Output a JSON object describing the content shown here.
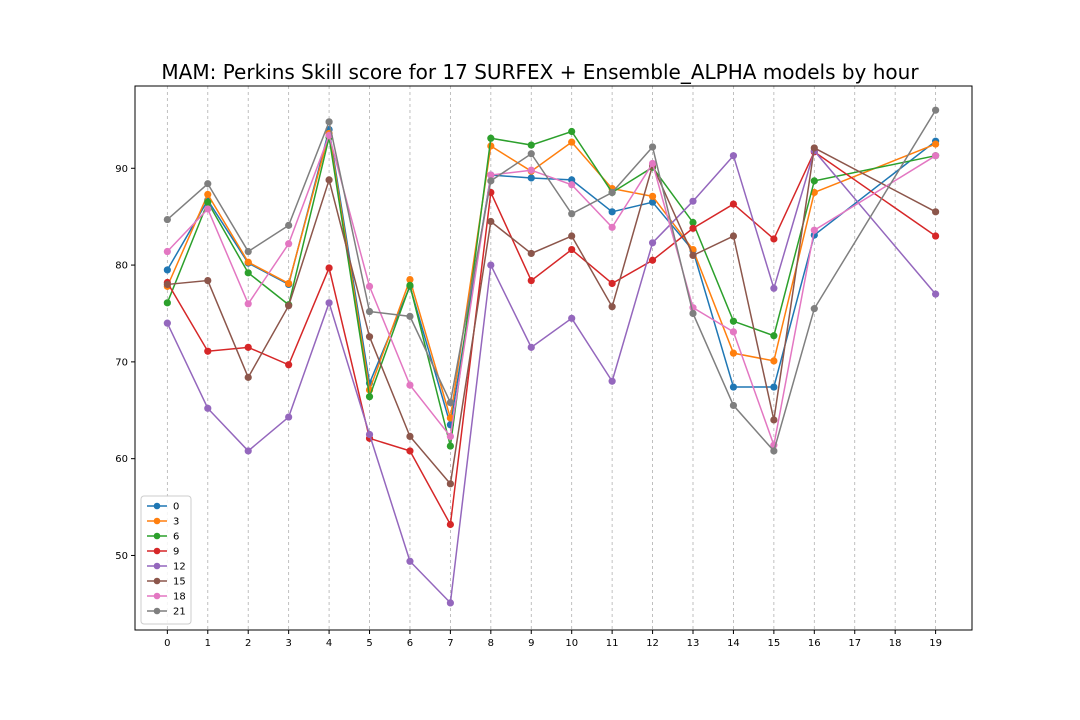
{
  "chart_data": {
    "type": "line",
    "title": "MAM: Perkins Skill score for 17 SURFEX + Ensemble_ALPHA models by hour",
    "xlabel": "",
    "ylabel": "",
    "x": [
      0,
      1,
      2,
      3,
      4,
      5,
      6,
      7,
      8,
      9,
      10,
      11,
      12,
      13,
      14,
      15,
      16,
      19
    ],
    "xticks": [
      0,
      1,
      2,
      3,
      4,
      5,
      6,
      7,
      8,
      9,
      10,
      11,
      12,
      13,
      14,
      15,
      16,
      17,
      18,
      19
    ],
    "yticks": [
      50,
      60,
      70,
      80,
      90
    ],
    "xlim": [
      -0.8,
      19.9
    ],
    "ylim": [
      42.3,
      98.5
    ],
    "grid": "vertical dashed",
    "legend_position": "lower-left",
    "series": [
      {
        "name": "0",
        "color": "#1f77b4",
        "values": [
          79.5,
          86.7,
          80.2,
          78.0,
          94.0,
          67.8,
          77.8,
          63.5,
          89.3,
          89.0,
          88.8,
          85.5,
          86.5,
          81.5,
          67.4,
          67.4,
          83.1,
          92.8
        ]
      },
      {
        "name": "3",
        "color": "#ff7f0e",
        "values": [
          77.8,
          87.3,
          80.3,
          78.1,
          93.6,
          67.1,
          78.5,
          64.2,
          92.3,
          89.7,
          92.7,
          87.9,
          87.1,
          81.6,
          70.9,
          70.1,
          87.5,
          92.5
        ]
      },
      {
        "name": "6",
        "color": "#2ca02c",
        "values": [
          76.1,
          86.5,
          79.2,
          75.9,
          93.2,
          66.4,
          77.9,
          61.3,
          93.1,
          92.4,
          93.8,
          87.5,
          90.1,
          84.4,
          74.2,
          72.7,
          88.7,
          91.3
        ]
      },
      {
        "name": "9",
        "color": "#d62728",
        "values": [
          78.2,
          71.1,
          71.5,
          69.7,
          79.7,
          62.1,
          60.8,
          53.2,
          87.5,
          78.4,
          81.6,
          78.1,
          80.5,
          83.8,
          86.3,
          82.7,
          91.7,
          83.0
        ]
      },
      {
        "name": "12",
        "color": "#9467bd",
        "values": [
          74.0,
          65.2,
          60.8,
          64.3,
          76.1,
          62.5,
          49.4,
          45.1,
          80.0,
          71.5,
          74.5,
          68.0,
          82.3,
          86.6,
          91.3,
          77.6,
          91.8,
          77.0
        ]
      },
      {
        "name": "15",
        "color": "#8c564b",
        "values": [
          78.0,
          78.4,
          68.4,
          75.8,
          88.8,
          72.6,
          62.3,
          57.4,
          84.5,
          81.2,
          83.0,
          75.7,
          90.3,
          81.0,
          83.0,
          64.0,
          92.1,
          85.5
        ]
      },
      {
        "name": "18",
        "color": "#e377c2",
        "values": [
          81.4,
          85.8,
          76.0,
          82.2,
          93.4,
          77.8,
          67.6,
          62.3,
          89.3,
          89.8,
          88.3,
          83.9,
          90.5,
          75.6,
          73.1,
          61.4,
          83.6,
          91.3
        ]
      },
      {
        "name": "21",
        "color": "#7f7f7f",
        "values": [
          84.7,
          88.4,
          81.4,
          84.1,
          94.8,
          75.2,
          74.7,
          65.8,
          88.7,
          91.5,
          85.3,
          87.5,
          92.2,
          75.0,
          65.5,
          60.8,
          75.5,
          96.0
        ]
      }
    ]
  }
}
